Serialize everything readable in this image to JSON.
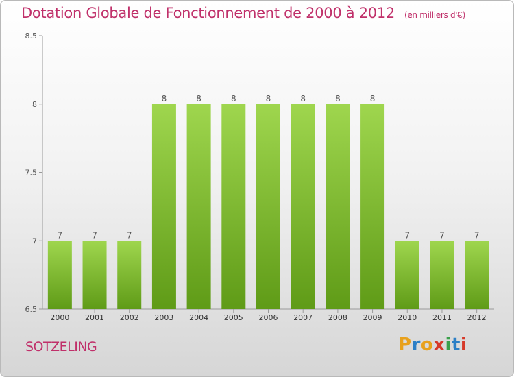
{
  "title": "Dotation Globale de Fonctionnement de 2000 à 2012",
  "unit": "(en milliers d'€)",
  "town": "SOTZELING",
  "logo": {
    "letters": [
      "P",
      "r",
      "o",
      "x",
      "i",
      "t",
      "i"
    ],
    "colors": [
      "#e8a11c",
      "#2c7fc6",
      "#e8a11c",
      "#d63a2a",
      "#3aa04a",
      "#2c7fc6",
      "#d63a2a"
    ]
  },
  "colors": {
    "bar_light": "#9fd64e",
    "bar_dark": "#5f9b17",
    "title": "#c0306a"
  },
  "chart_data": {
    "type": "bar",
    "categories": [
      "2000",
      "2001",
      "2002",
      "2003",
      "2004",
      "2005",
      "2006",
      "2007",
      "2008",
      "2009",
      "2010",
      "2011",
      "2012"
    ],
    "values": [
      7,
      7,
      7,
      8,
      8,
      8,
      8,
      8,
      8,
      8,
      7,
      7,
      7
    ],
    "data_labels": [
      "7",
      "7",
      "7",
      "8",
      "8",
      "8",
      "8",
      "8",
      "8",
      "8",
      "7",
      "7",
      "7"
    ],
    "ylim": [
      6.5,
      8.5
    ],
    "yticks": [
      6.5,
      7,
      7.5,
      8,
      8.5
    ],
    "ytick_labels": [
      "6.5",
      "7",
      "7.5",
      "8",
      "8.5"
    ],
    "grid": false,
    "legend": "none"
  }
}
